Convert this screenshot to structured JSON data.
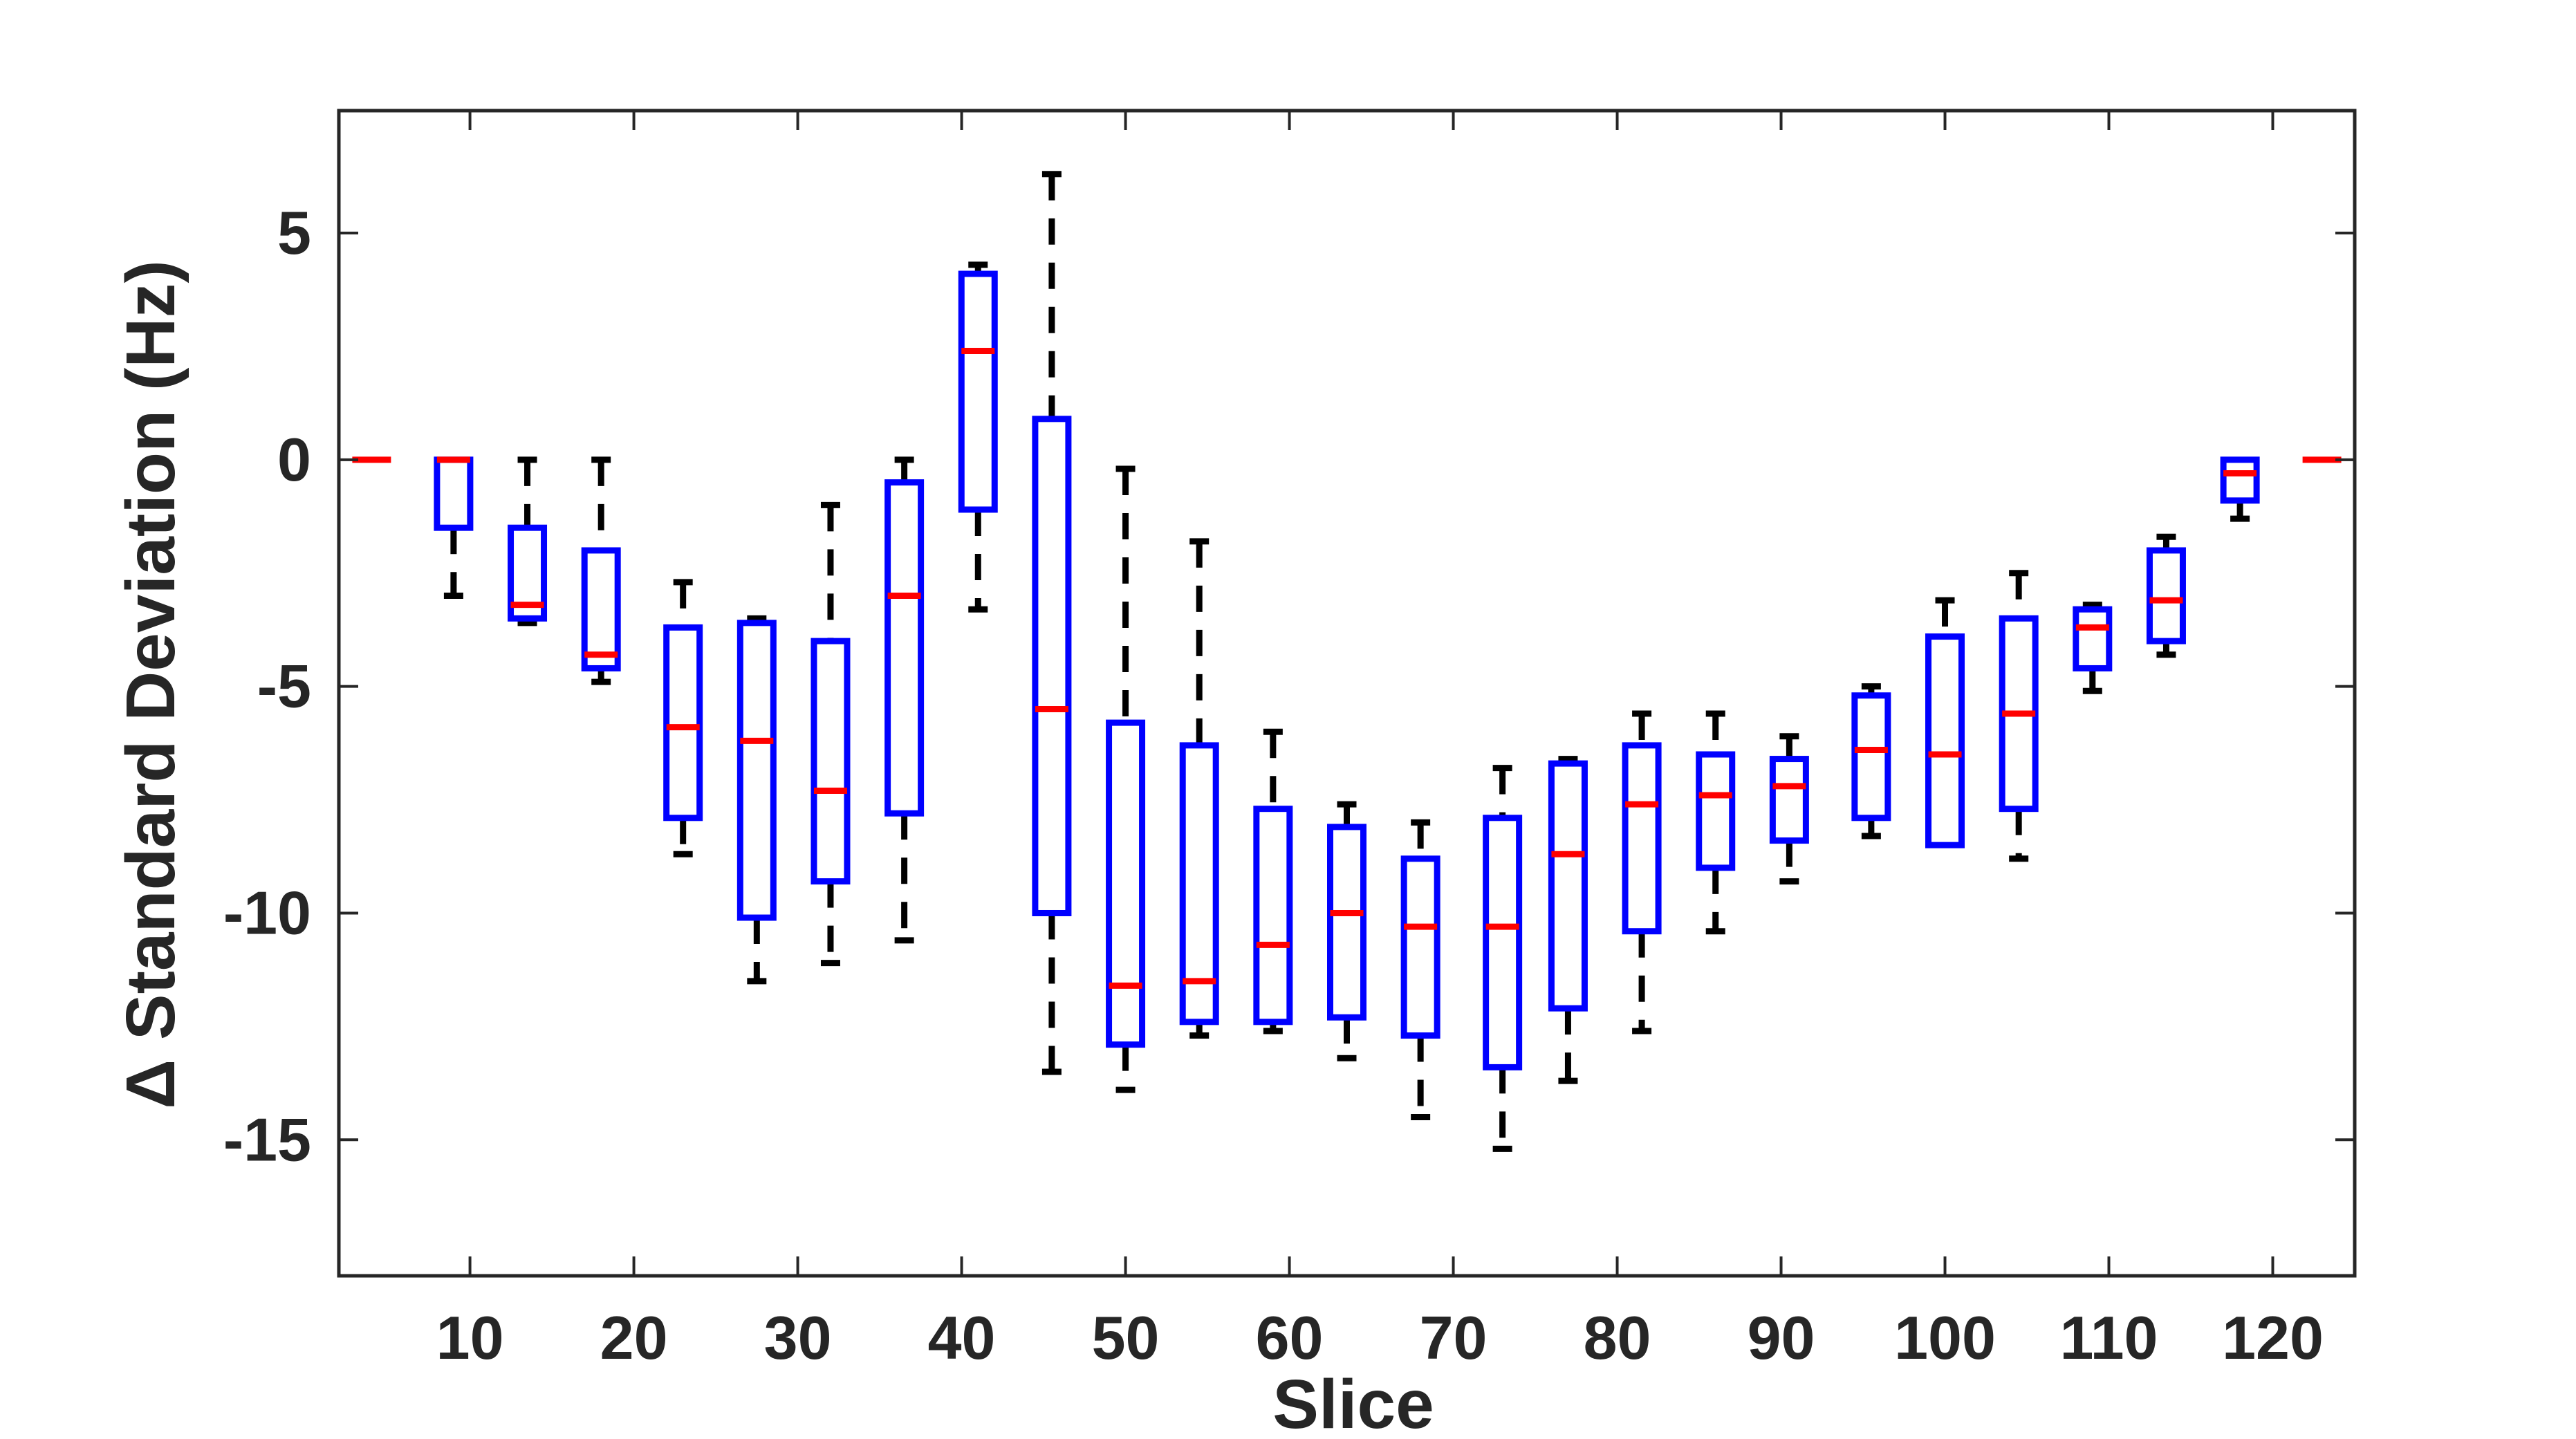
{
  "chart_data": {
    "type": "boxplot",
    "xlabel": "Slice",
    "ylabel": "Δ Standard Deviation (Hz)",
    "xlim": [
      2,
      125
    ],
    "ylim": [
      -18,
      7.7
    ],
    "xticks": [
      10,
      20,
      30,
      40,
      50,
      60,
      70,
      80,
      90,
      100,
      110,
      120
    ],
    "yticks": [
      -15,
      -10,
      -5,
      0,
      5
    ],
    "grid": false,
    "colors": {
      "box": "#0000ff",
      "median": "#ff0000",
      "whisker": "#000000",
      "axis": "#262626"
    },
    "boxes": [
      {
        "x": 4,
        "q1": 0,
        "median": 0,
        "q3": 0,
        "whisker_low": 0,
        "whisker_high": 0
      },
      {
        "x": 9,
        "q1": -1.5,
        "median": 0,
        "q3": 0,
        "whisker_low": -3.0,
        "whisker_high": 0
      },
      {
        "x": 13.5,
        "q1": -3.5,
        "median": -3.2,
        "q3": -1.5,
        "whisker_low": -3.6,
        "whisker_high": 0
      },
      {
        "x": 18,
        "q1": -4.6,
        "median": -4.3,
        "q3": -2.0,
        "whisker_low": -4.9,
        "whisker_high": 0
      },
      {
        "x": 23,
        "q1": -7.9,
        "median": -5.9,
        "q3": -3.7,
        "whisker_low": -8.7,
        "whisker_high": -2.7
      },
      {
        "x": 27.5,
        "q1": -10.1,
        "median": -6.2,
        "q3": -3.6,
        "whisker_low": -11.5,
        "whisker_high": -3.5
      },
      {
        "x": 32,
        "q1": -9.3,
        "median": -7.3,
        "q3": -4.0,
        "whisker_low": -11.1,
        "whisker_high": -1.0
      },
      {
        "x": 36.5,
        "q1": -7.8,
        "median": -3.0,
        "q3": -0.5,
        "whisker_low": -10.6,
        "whisker_high": 0
      },
      {
        "x": 41,
        "q1": -1.1,
        "median": 2.4,
        "q3": 4.1,
        "whisker_low": -3.3,
        "whisker_high": 4.3
      },
      {
        "x": 45.5,
        "q1": -10.0,
        "median": -5.5,
        "q3": 0.9,
        "whisker_low": -13.5,
        "whisker_high": 6.3
      },
      {
        "x": 50,
        "q1": -12.9,
        "median": -11.6,
        "q3": -5.8,
        "whisker_low": -13.9,
        "whisker_high": -0.2
      },
      {
        "x": 54.5,
        "q1": -12.4,
        "median": -11.5,
        "q3": -6.3,
        "whisker_low": -12.7,
        "whisker_high": -1.8
      },
      {
        "x": 59,
        "q1": -12.4,
        "median": -10.7,
        "q3": -7.7,
        "whisker_low": -12.6,
        "whisker_high": -6.0
      },
      {
        "x": 63.5,
        "q1": -12.3,
        "median": -10.0,
        "q3": -8.1,
        "whisker_low": -13.2,
        "whisker_high": -7.6
      },
      {
        "x": 68,
        "q1": -12.7,
        "median": -10.3,
        "q3": -8.8,
        "whisker_low": -14.5,
        "whisker_high": -8.0
      },
      {
        "x": 73,
        "q1": -13.4,
        "median": -10.3,
        "q3": -7.9,
        "whisker_low": -15.2,
        "whisker_high": -6.8
      },
      {
        "x": 77,
        "q1": -12.1,
        "median": -8.7,
        "q3": -6.7,
        "whisker_low": -13.7,
        "whisker_high": -6.6
      },
      {
        "x": 81.5,
        "q1": -10.4,
        "median": -7.6,
        "q3": -6.3,
        "whisker_low": -12.6,
        "whisker_high": -5.6
      },
      {
        "x": 86,
        "q1": -9.0,
        "median": -7.4,
        "q3": -6.5,
        "whisker_low": -10.4,
        "whisker_high": -5.6
      },
      {
        "x": 90.5,
        "q1": -8.4,
        "median": -7.2,
        "q3": -6.6,
        "whisker_low": -9.3,
        "whisker_high": -6.1
      },
      {
        "x": 95.5,
        "q1": -7.9,
        "median": -6.4,
        "q3": -5.2,
        "whisker_low": -8.3,
        "whisker_high": -5.0
      },
      {
        "x": 100,
        "q1": -8.5,
        "median": -6.5,
        "q3": -3.9,
        "whisker_low": -8.5,
        "whisker_high": -3.1
      },
      {
        "x": 104.5,
        "q1": -7.7,
        "median": -5.6,
        "q3": -3.5,
        "whisker_low": -8.8,
        "whisker_high": -2.5
      },
      {
        "x": 109,
        "q1": -4.6,
        "median": -3.7,
        "q3": -3.3,
        "whisker_low": -5.1,
        "whisker_high": -3.2
      },
      {
        "x": 113.5,
        "q1": -4.0,
        "median": -3.1,
        "q3": -2.0,
        "whisker_low": -4.3,
        "whisker_high": -1.7
      },
      {
        "x": 118,
        "q1": -0.9,
        "median": -0.3,
        "q3": 0,
        "whisker_low": -1.3,
        "whisker_high": 0
      },
      {
        "x": 123,
        "q1": 0,
        "median": 0,
        "q3": 0,
        "whisker_low": 0,
        "whisker_high": 0
      }
    ]
  }
}
